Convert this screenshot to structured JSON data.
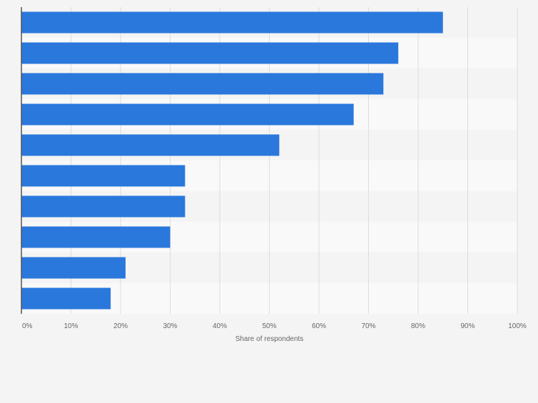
{
  "chart_data": {
    "type": "bar",
    "orientation": "horizontal",
    "title": "",
    "xlabel": "Share of respondents",
    "ylabel": "",
    "xlim": [
      0,
      100
    ],
    "x_ticks": [
      "0%",
      "10%",
      "20%",
      "30%",
      "40%",
      "50%",
      "60%",
      "70%",
      "80%",
      "90%",
      "100%"
    ],
    "tick_values": [
      0,
      10,
      20,
      30,
      40,
      50,
      60,
      70,
      80,
      90,
      100
    ],
    "categories": [
      "",
      "",
      "",
      "",
      "",
      "",
      "",
      "",
      "",
      ""
    ],
    "values": [
      85,
      76,
      73,
      67,
      52,
      33,
      33,
      30,
      21,
      18
    ],
    "grid": true,
    "colors": {
      "bar": "#2a78dc",
      "band_odd": "#f4f4f4",
      "band_even": "#f9f9f9",
      "grid": "#dddddd",
      "axis": "#555555",
      "tick_text": "#666666",
      "label_text": "#666666"
    }
  }
}
